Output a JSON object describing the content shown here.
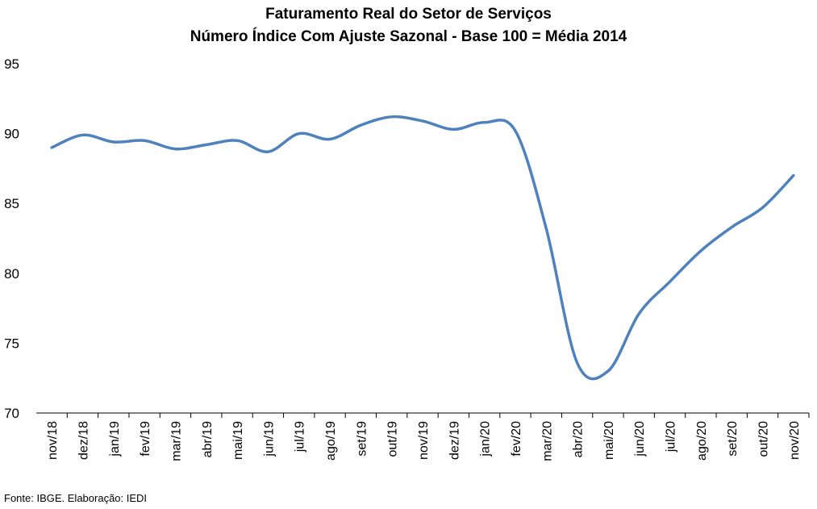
{
  "chart_data": {
    "type": "line",
    "title": "Faturamento Real do Setor de Serviços",
    "subtitle": "Número Índice Com Ajuste Sazonal - Base 100 = Média 2014",
    "xlabel": "",
    "ylabel": "",
    "ylim": [
      70,
      95
    ],
    "yticks": [
      70,
      75,
      80,
      85,
      90,
      95
    ],
    "grid": false,
    "legend": "none",
    "categories": [
      "nov/18",
      "dez/18",
      "jan/19",
      "fev/19",
      "mar/19",
      "abr/19",
      "mai/19",
      "jun/19",
      "jul/19",
      "ago/19",
      "set/19",
      "out/19",
      "nov/19",
      "dez/19",
      "jan/20",
      "fev/20",
      "mar/20",
      "abr/20",
      "mai/20",
      "jun/20",
      "jul/20",
      "ago/20",
      "set/20",
      "out/20",
      "nov/20"
    ],
    "series": [
      {
        "color": "#4f81bd",
        "values": [
          89.0,
          89.9,
          89.4,
          89.5,
          88.9,
          89.2,
          89.5,
          88.7,
          90.0,
          89.6,
          90.6,
          91.2,
          90.9,
          90.3,
          90.8,
          90.2,
          83.2,
          73.6,
          73.0,
          77.1,
          79.4,
          81.6,
          83.3,
          84.7,
          87.0
        ]
      }
    ]
  },
  "source": "Fonte: IBGE. Elaboração: IEDI"
}
